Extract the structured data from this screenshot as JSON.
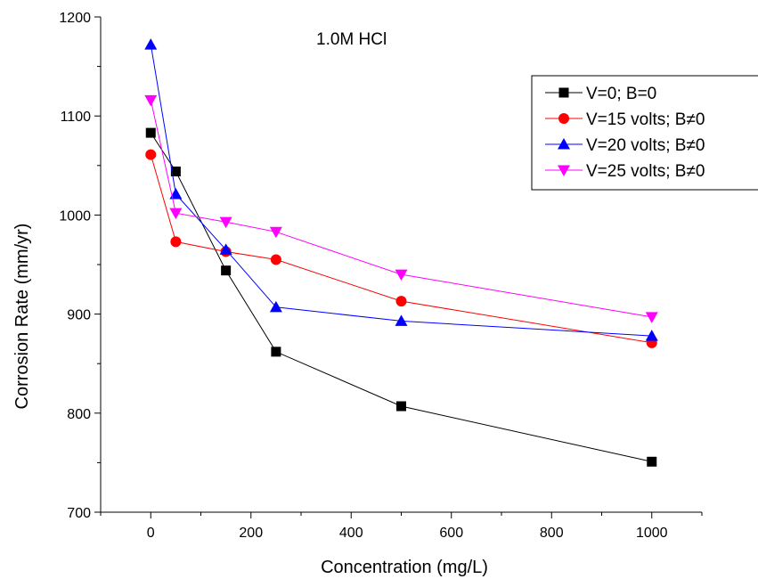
{
  "chart_data": {
    "type": "line",
    "annotation": "1.0M HCl",
    "xlabel": "Concentration (mg/L)",
    "ylabel": "Corrosion Rate (mm/yr)",
    "xlim": [
      -100,
      1100
    ],
    "ylim": [
      700,
      1200
    ],
    "xticks": [
      0,
      200,
      400,
      600,
      800,
      1000
    ],
    "yticks": [
      700,
      800,
      900,
      1000,
      1100,
      1200
    ],
    "grid": false,
    "legend_position": "top-right",
    "series": [
      {
        "name": "V=0; B=0",
        "marker": "square",
        "color": "#000000",
        "x": [
          0,
          50,
          150,
          250,
          500,
          1000
        ],
        "y": [
          1083,
          1044,
          944,
          862,
          807,
          751
        ]
      },
      {
        "name": "V=15 volts; B≠0",
        "marker": "circle",
        "color": "#ff0000",
        "x": [
          0,
          50,
          150,
          250,
          500,
          1000
        ],
        "y": [
          1061,
          973,
          963,
          955,
          913,
          871
        ]
      },
      {
        "name": "V=20 volts; B≠0",
        "marker": "triangle-up",
        "color": "#0000ff",
        "x": [
          0,
          50,
          150,
          250,
          500,
          1000
        ],
        "y": [
          1172,
          1021,
          965,
          907,
          893,
          878
        ]
      },
      {
        "name": "V=25 volts; B≠0",
        "marker": "triangle-down",
        "color": "#ff00ff",
        "x": [
          0,
          50,
          150,
          250,
          500,
          1000
        ],
        "y": [
          1116,
          1002,
          993,
          983,
          940,
          897
        ]
      }
    ]
  }
}
